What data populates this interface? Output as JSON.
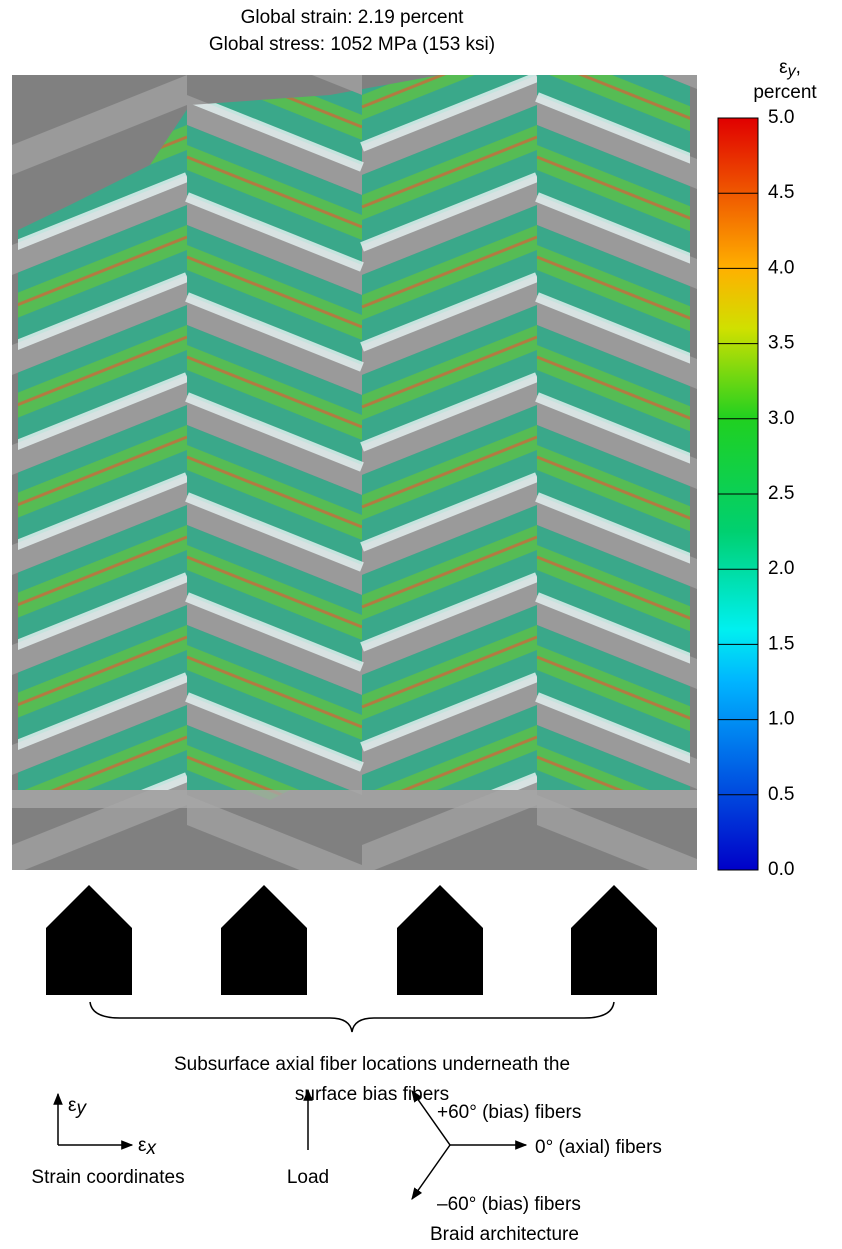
{
  "header": {
    "strain": "Global strain: 2.19 percent",
    "stress": "Global stress: 1052 MPa (153 ksi)"
  },
  "colorbar": {
    "symbol": "ε",
    "subscript": "y",
    "comma": ",",
    "unit": "percent",
    "range": [
      0,
      5
    ],
    "ticks": [
      {
        "value": 0,
        "label": "0.0"
      },
      {
        "value": 0.5,
        "label": "0.5"
      },
      {
        "value": 1,
        "label": "1.0"
      },
      {
        "value": 1.5,
        "label": "1.5"
      },
      {
        "value": 2,
        "label": "2.0"
      },
      {
        "value": 2.5,
        "label": "2.5"
      },
      {
        "value": 3,
        "label": "3.0"
      },
      {
        "value": 3.5,
        "label": "3.5"
      },
      {
        "value": 4,
        "label": "4.0"
      },
      {
        "value": 4.5,
        "label": "4.5"
      },
      {
        "value": 5,
        "label": "5.0"
      }
    ]
  },
  "caption": {
    "line1": "Subsurface axial fiber locations underneath the",
    "line2": "surface bias fibers"
  },
  "coords": {
    "symbol": "ε",
    "y": "y",
    "x": "x",
    "label": "Strain coordinates"
  },
  "load": "Load",
  "braid": {
    "plus60": "+60° (bias) fibers",
    "zero": "0° (axial) fibers",
    "minus60": "–60° (bias) fibers",
    "label": "Braid architecture"
  }
}
